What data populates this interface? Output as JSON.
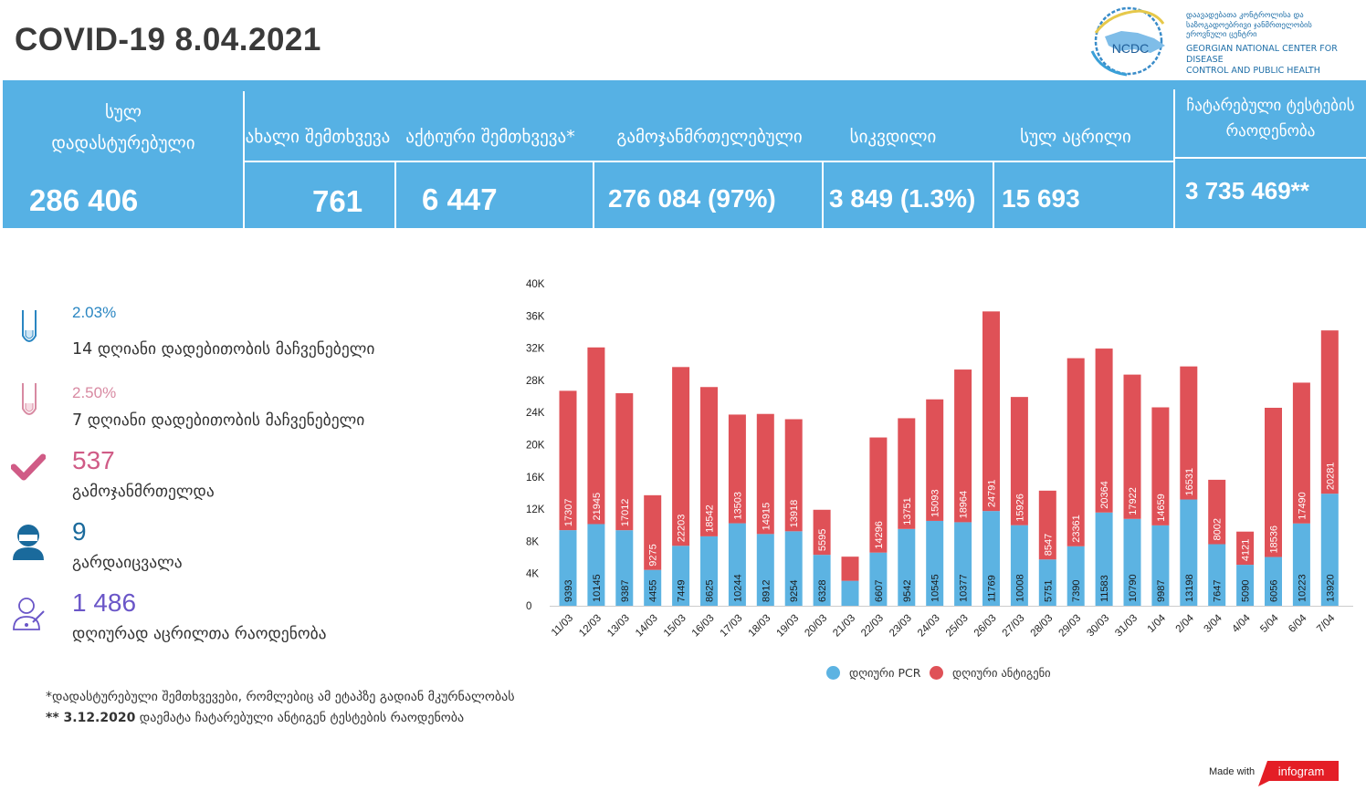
{
  "title": "COVID-19 8.04.2021",
  "logo": {
    "abbr": "NCDC",
    "ka_lines": [
      "დაავადებათა კონტროლისა და",
      "საზოგადოებრივი ჯანმრთელობის",
      "ეროვნული ცენტრი"
    ],
    "en_lines": [
      "GEORGIAN NATIONAL CENTER FOR DISEASE",
      "CONTROL AND PUBLIC HEALTH"
    ]
  },
  "summary": {
    "total": {
      "label_lines": [
        "სულ",
        "დადასტურებული"
      ],
      "value": "286 406"
    },
    "new_cases": {
      "label": "ახალი შემთხვევა",
      "value": "761"
    },
    "active": {
      "label": "აქტიური შემთხვევა*",
      "value": "6 447"
    },
    "recovered": {
      "label": "გამოჯანმრთელებული",
      "value": "276 084 (97%)"
    },
    "deaths": {
      "label": "სიკვდილი",
      "value": "3 849 (1.3%)"
    },
    "vaccinated": {
      "label": "სულ აცრილი",
      "value": "15 693"
    },
    "tests": {
      "label_lines": [
        "ჩატარებული  ტესტების",
        "რაოდენობა"
      ],
      "value": "3 735 469**"
    }
  },
  "stats": [
    {
      "icon": "test-tube-icon",
      "value": "2.03%",
      "label": "14  დღიანი დადებითობის მაჩვენებელი",
      "color": "#2a86c2"
    },
    {
      "icon": "test-tube-icon",
      "value": "2.50%",
      "label": "7 დღიანი დადებითობის მაჩვენებელი",
      "color": "#d88aa2"
    },
    {
      "icon": "checkmark-icon",
      "value": "537",
      "label": "გამოჯანმრთელდა",
      "color": "#d05b86"
    },
    {
      "icon": "person-icon",
      "value": "9",
      "label": "გარდაიცვალა",
      "color": "#1a6a9c"
    },
    {
      "icon": "doctor-icon",
      "value": "1 486",
      "label": " დღიურად აცრილთა რაოდენობა",
      "color": "#6a56c8"
    }
  ],
  "footnotes": {
    "note1": "*დადასტურებული შემთხვევები, რომლებიც ამ ეტაპზე გადიან მკურნალობას",
    "note2_bold": "** 3.12.2020",
    "note2_rest": " დაემატა ჩატარებული ანტიგენ ტესტების რაოდენობა"
  },
  "made_with": "Made with",
  "brand": "infogram",
  "colors": {
    "band": "#56b1e4",
    "pcr": "#5cb3e2",
    "antigen": "#df5157"
  },
  "chart_data": {
    "type": "bar",
    "stacked": true,
    "categories": [
      "11/03",
      "12/03",
      "13/03",
      "14/03",
      "15/03",
      "16/03",
      "17/03",
      "18/03",
      "19/03",
      "20/03",
      "21/03",
      "22/03",
      "23/03",
      "24/03",
      "25/03",
      "26/03",
      "27/03",
      "28/03",
      "29/03",
      "30/03",
      "31/03",
      "1/04",
      "2/04",
      "3/04",
      "4/04",
      "5/04",
      "6/04",
      "7/04"
    ],
    "series": [
      {
        "name": "დღიური PCR",
        "color": "#5cb3e2",
        "values": [
          9393,
          10145,
          9387,
          4455,
          7449,
          8625,
          10244,
          8912,
          9254,
          6328,
          3100,
          6607,
          9542,
          10545,
          10377,
          11769,
          10008,
          5751,
          7390,
          11583,
          10790,
          9987,
          13198,
          7647,
          5090,
          6056,
          10223,
          13920
        ],
        "labels": [
          "9393",
          "10145",
          "9387",
          "4455",
          "7449",
          "8625",
          "10244",
          "8912",
          "9254",
          "6328",
          "",
          "6607",
          "9542",
          "10545",
          "10377",
          "11769",
          "10008",
          "5751",
          "7390",
          "11583",
          "10790",
          "9987",
          "13198",
          "7647",
          "5090",
          "6056",
          "10223",
          "13920"
        ]
      },
      {
        "name": "დღიური ანტიგენი",
        "color": "#df5157",
        "values": [
          17307,
          21945,
          17012,
          9275,
          22203,
          18542,
          13503,
          14915,
          13918,
          5595,
          3000,
          14296,
          13751,
          15093,
          18964,
          24791,
          15926,
          8547,
          23361,
          20364,
          17922,
          14659,
          16531,
          8002,
          4121,
          18536,
          17490,
          20281
        ],
        "labels": [
          "17307",
          "21945",
          "17012",
          "9275",
          "22203",
          "18542",
          "13503",
          "14915",
          "13918",
          "5595",
          "",
          "14296",
          "13751",
          "15093",
          "18964",
          "24791",
          "15926",
          "8547",
          "23361",
          "20364",
          "17922",
          "14659",
          "16531",
          "8002",
          "4121",
          "18536",
          "17490",
          "20281"
        ]
      }
    ],
    "yticks": [
      "0",
      "4K",
      "8K",
      "12K",
      "16K",
      "20K",
      "24K",
      "28K",
      "32K",
      "36K",
      "40K"
    ],
    "ylim": [
      0,
      40000
    ],
    "grid": false,
    "legend": "bottom"
  }
}
